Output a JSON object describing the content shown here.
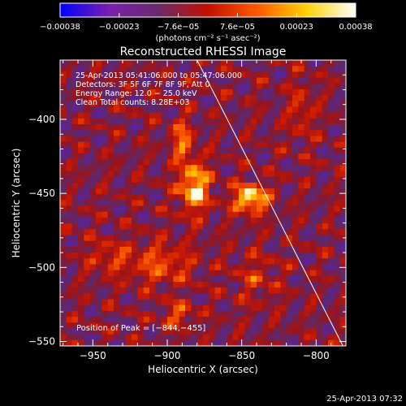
{
  "chart_data": {
    "type": "heatmap",
    "title": "Reconstructed RHESSI Image",
    "xlabel": "Heliocentric X (arcsec)",
    "ylabel": "Heliocentric Y (arcsec)",
    "xlim": [
      -972,
      -780
    ],
    "ylim": [
      -553,
      -360
    ],
    "x_ticks": [
      -950,
      -900,
      -850,
      -800
    ],
    "x_tick_labels": [
      "−950",
      "−900",
      "−850",
      "−800"
    ],
    "y_ticks": [
      -400,
      -450,
      -500,
      -550
    ],
    "y_tick_labels": [
      "−400",
      "−450",
      "−500",
      "−550"
    ],
    "colorbar": {
      "min": -0.00038,
      "max": 0.00038,
      "tick_labels": [
        "−0.00038",
        "−0.00023",
        "−7.6e−05",
        "7.6e−05",
        "0.00023",
        "0.00038"
      ],
      "units": "(photons cm⁻² s⁻¹ asec⁻²)",
      "colors": [
        "#0000ff",
        "#7a1fb0",
        "#6b2a6b",
        "#c01000",
        "#ff5a00",
        "#ffd000",
        "#ffffff"
      ]
    },
    "annotations": [
      "25-Apr-2013 05:41:06.000 to 05:47:06.000",
      "Detectors: 3F 5F 6F 7F 8F 9F, Att 0",
      "Energy Range: 12.0 − 25.0 keV",
      "Clean     Total counts: 8.28E+03"
    ],
    "peak_label": "Position of Peak = [−844,−455]",
    "peak": {
      "x": -844,
      "y": -455
    },
    "limb_line": {
      "x": [
        -880,
        -782
      ],
      "y": [
        -360,
        -553
      ]
    },
    "sources": [
      {
        "x": -882,
        "y": -447,
        "amplitude": 0.00036,
        "sx": 7,
        "sy": 12
      },
      {
        "x": -844,
        "y": -455,
        "amplitude": 0.00038,
        "sx": 8,
        "sy": 7
      },
      {
        "x": -890,
        "y": -415,
        "amplitude": 0.00022,
        "sx": 5,
        "sy": 10
      },
      {
        "x": -905,
        "y": -500,
        "amplitude": 0.00018,
        "sx": 16,
        "sy": 10
      },
      {
        "x": -940,
        "y": -495,
        "amplitude": 0.00013,
        "sx": 10,
        "sy": 8
      },
      {
        "x": -893,
        "y": -535,
        "amplitude": 0.00017,
        "sx": 8,
        "sy": 6
      },
      {
        "x": -810,
        "y": -395,
        "amplitude": 0.00013,
        "sx": 6,
        "sy": 14
      },
      {
        "x": -840,
        "y": -510,
        "amplitude": 0.00011,
        "sx": 10,
        "sy": 12
      }
    ]
  },
  "footer": {
    "timestamp": "25-Apr-2013 07:32"
  }
}
